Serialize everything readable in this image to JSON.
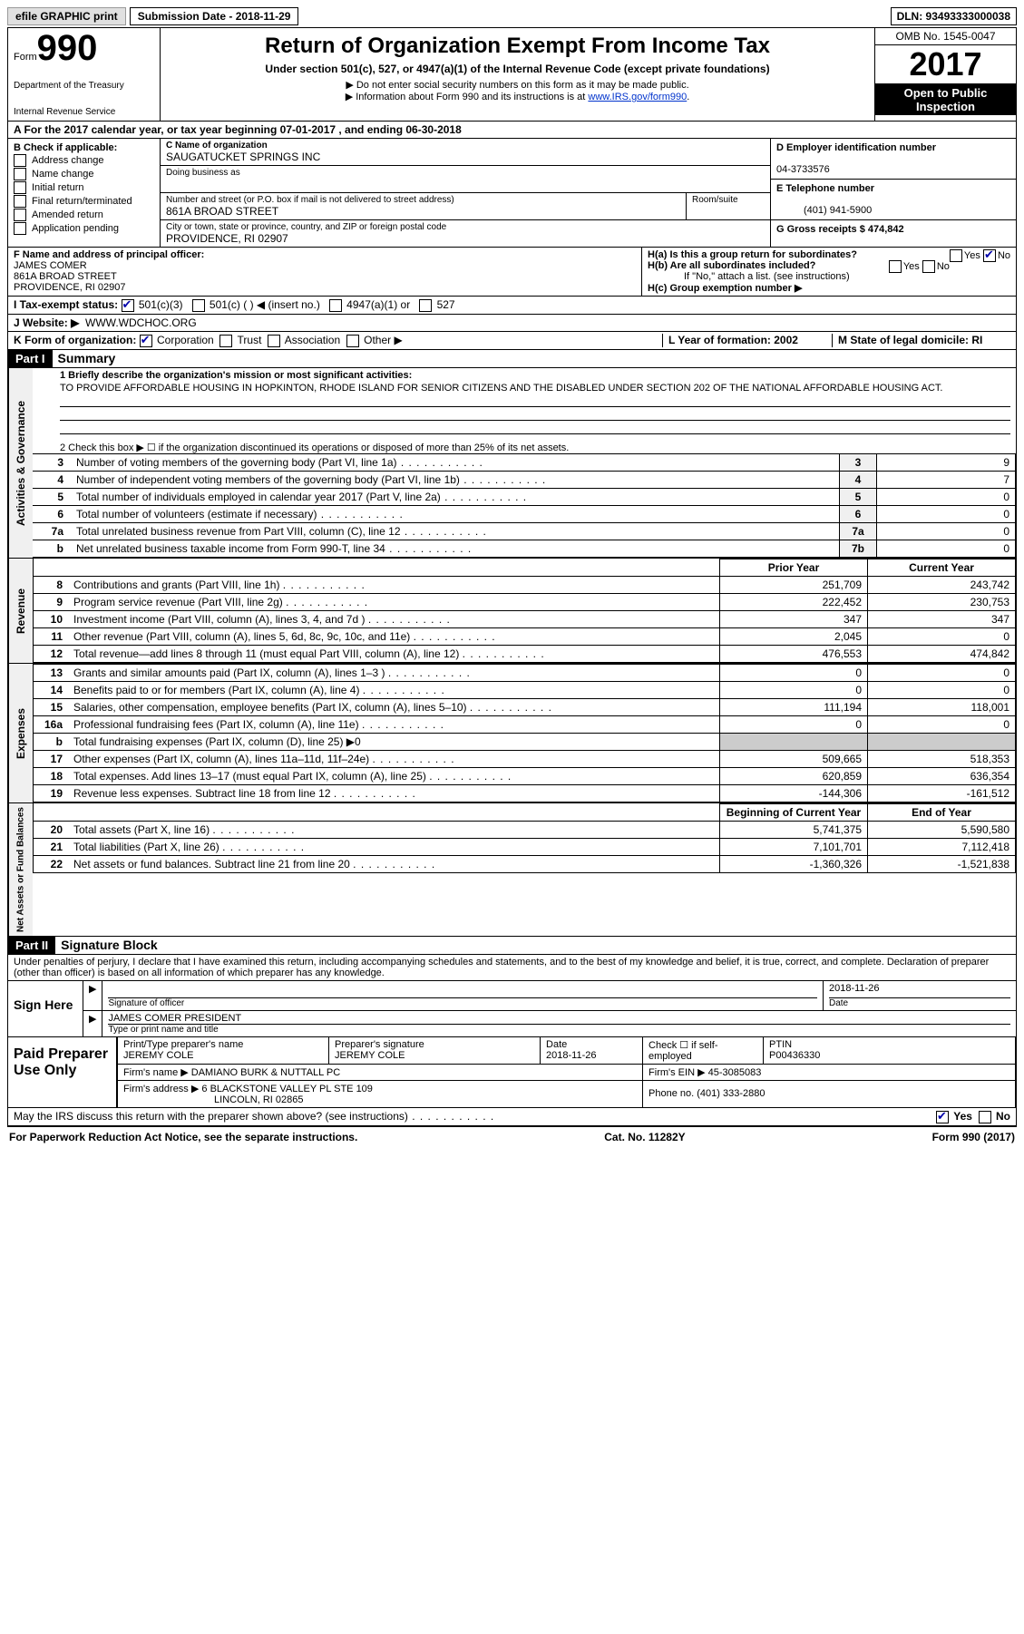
{
  "top": {
    "efile": "efile GRAPHIC print",
    "submission": "Submission Date - 2018-11-29",
    "dln": "DLN: 93493333000038"
  },
  "header": {
    "form_label": "Form",
    "form_number": "990",
    "dept1": "Department of the Treasury",
    "dept2": "Internal Revenue Service",
    "title": "Return of Organization Exempt From Income Tax",
    "subtitle": "Under section 501(c), 527, or 4947(a)(1) of the Internal Revenue Code (except private foundations)",
    "note1": "▶ Do not enter social security numbers on this form as it may be made public.",
    "note2": "▶ Information about Form 990 and its instructions is at ",
    "note2_link": "www.IRS.gov/form990",
    "omb": "OMB No. 1545-0047",
    "year": "2017",
    "open1": "Open to Public",
    "open2": "Inspection"
  },
  "rowA": "A  For the 2017 calendar year, or tax year beginning 07-01-2017   , and ending 06-30-2018",
  "sectionB": {
    "b_label": "B Check if applicable:",
    "checks": [
      "Address change",
      "Name change",
      "Initial return",
      "Final return/terminated",
      "Amended return",
      "Application pending"
    ],
    "c_label": "C Name of organization",
    "org_name": "SAUGATUCKET SPRINGS INC",
    "dba_label": "Doing business as",
    "street_label": "Number and street (or P.O. box if mail is not delivered to street address)",
    "room_label": "Room/suite",
    "street": "861A BROAD STREET",
    "city_label": "City or town, state or province, country, and ZIP or foreign postal code",
    "city": "PROVIDENCE, RI  02907",
    "d_label": "D Employer identification number",
    "ein": "04-3733576",
    "e_label": "E Telephone number",
    "phone": "(401) 941-5900",
    "g_label": "G Gross receipts $ 474,842"
  },
  "sectionF": {
    "f_label": "F Name and address of principal officer:",
    "name": "JAMES COMER",
    "addr1": "861A BROAD STREET",
    "addr2": "PROVIDENCE, RI  02907",
    "ha": "H(a)  Is this a group return for subordinates?",
    "hb": "H(b)  Are all subordinates included?",
    "hb_note": "If \"No,\" attach a list. (see instructions)",
    "hc": "H(c)  Group exemption number ▶",
    "yes": "Yes",
    "no": "No"
  },
  "rowI": {
    "label": "I  Tax-exempt status:",
    "opts": [
      "501(c)(3)",
      "501(c) (  ) ◀ (insert no.)",
      "4947(a)(1) or",
      "527"
    ]
  },
  "rowJ": {
    "label": "J  Website: ▶",
    "value": "WWW.WDCHOC.ORG"
  },
  "rowK": {
    "label": "K Form of organization:",
    "opts": [
      "Corporation",
      "Trust",
      "Association",
      "Other ▶"
    ],
    "l": "L Year of formation: 2002",
    "m": "M State of legal domicile: RI"
  },
  "part1": {
    "header": "Part I",
    "title": "Summary"
  },
  "mission_label": "1   Briefly describe the organization's mission or most significant activities:",
  "mission": "TO PROVIDE AFFORDABLE HOUSING IN HOPKINTON, RHODE ISLAND FOR SENIOR CITIZENS AND THE DISABLED UNDER SECTION 202 OF THE NATIONAL AFFORDABLE HOUSING ACT.",
  "line2": "2   Check this box ▶ ☐  if the organization discontinued its operations or disposed of more than 25% of its net assets.",
  "gov_lines": [
    {
      "n": "3",
      "desc": "Number of voting members of the governing body (Part VI, line 1a)",
      "box": "3",
      "val": "9"
    },
    {
      "n": "4",
      "desc": "Number of independent voting members of the governing body (Part VI, line 1b)",
      "box": "4",
      "val": "7"
    },
    {
      "n": "5",
      "desc": "Total number of individuals employed in calendar year 2017 (Part V, line 2a)",
      "box": "5",
      "val": "0"
    },
    {
      "n": "6",
      "desc": "Total number of volunteers (estimate if necessary)",
      "box": "6",
      "val": "0"
    },
    {
      "n": "7a",
      "desc": "Total unrelated business revenue from Part VIII, column (C), line 12",
      "box": "7a",
      "val": "0"
    },
    {
      "n": "b",
      "desc": "Net unrelated business taxable income from Form 990-T, line 34",
      "box": "7b",
      "val": "0"
    }
  ],
  "col_headers": {
    "prior": "Prior Year",
    "current": "Current Year",
    "boy": "Beginning of Current Year",
    "eoy": "End of Year"
  },
  "revenue": [
    {
      "n": "8",
      "desc": "Contributions and grants (Part VIII, line 1h)",
      "prior": "251,709",
      "cur": "243,742"
    },
    {
      "n": "9",
      "desc": "Program service revenue (Part VIII, line 2g)",
      "prior": "222,452",
      "cur": "230,753"
    },
    {
      "n": "10",
      "desc": "Investment income (Part VIII, column (A), lines 3, 4, and 7d )",
      "prior": "347",
      "cur": "347"
    },
    {
      "n": "11",
      "desc": "Other revenue (Part VIII, column (A), lines 5, 6d, 8c, 9c, 10c, and 11e)",
      "prior": "2,045",
      "cur": "0"
    },
    {
      "n": "12",
      "desc": "Total revenue—add lines 8 through 11 (must equal Part VIII, column (A), line 12)",
      "prior": "476,553",
      "cur": "474,842"
    }
  ],
  "expenses": [
    {
      "n": "13",
      "desc": "Grants and similar amounts paid (Part IX, column (A), lines 1–3 )",
      "prior": "0",
      "cur": "0"
    },
    {
      "n": "14",
      "desc": "Benefits paid to or for members (Part IX, column (A), line 4)",
      "prior": "0",
      "cur": "0"
    },
    {
      "n": "15",
      "desc": "Salaries, other compensation, employee benefits (Part IX, column (A), lines 5–10)",
      "prior": "111,194",
      "cur": "118,001"
    },
    {
      "n": "16a",
      "desc": "Professional fundraising fees (Part IX, column (A), line 11e)",
      "prior": "0",
      "cur": "0"
    },
    {
      "n": "b",
      "desc": "Total fundraising expenses (Part IX, column (D), line 25) ▶0",
      "prior": "",
      "cur": "",
      "shaded": true
    },
    {
      "n": "17",
      "desc": "Other expenses (Part IX, column (A), lines 11a–11d, 11f–24e)",
      "prior": "509,665",
      "cur": "518,353"
    },
    {
      "n": "18",
      "desc": "Total expenses. Add lines 13–17 (must equal Part IX, column (A), line 25)",
      "prior": "620,859",
      "cur": "636,354"
    },
    {
      "n": "19",
      "desc": "Revenue less expenses. Subtract line 18 from line 12",
      "prior": "-144,306",
      "cur": "-161,512"
    }
  ],
  "netassets": [
    {
      "n": "20",
      "desc": "Total assets (Part X, line 16)",
      "prior": "5,741,375",
      "cur": "5,590,580"
    },
    {
      "n": "21",
      "desc": "Total liabilities (Part X, line 26)",
      "prior": "7,101,701",
      "cur": "7,112,418"
    },
    {
      "n": "22",
      "desc": "Net assets or fund balances. Subtract line 21 from line 20",
      "prior": "-1,360,326",
      "cur": "-1,521,838"
    }
  ],
  "vert": {
    "gov": "Activities & Governance",
    "rev": "Revenue",
    "exp": "Expenses",
    "net": "Net Assets or Fund Balances"
  },
  "part2": {
    "header": "Part II",
    "title": "Signature Block"
  },
  "penalties": "Under penalties of perjury, I declare that I have examined this return, including accompanying schedules and statements, and to the best of my knowledge and belief, it is true, correct, and complete. Declaration of preparer (other than officer) is based on all information of which preparer has any knowledge.",
  "sign": {
    "here": "Sign Here",
    "sig_label": "Signature of officer",
    "date": "2018-11-26",
    "date_label": "Date",
    "name": "JAMES COMER  PRESIDENT",
    "name_label": "Type or print name and title"
  },
  "prep": {
    "label": "Paid Preparer Use Only",
    "l1": "Print/Type preparer's name",
    "v1": "JEREMY COLE",
    "l2": "Preparer's signature",
    "v2": "JEREMY COLE",
    "l3": "Date",
    "v3": "2018-11-26",
    "l4": "Check ☐ if self-employed",
    "l5": "PTIN",
    "v5": "P00436330",
    "firm_l": "Firm's name    ▶",
    "firm": "DAMIANO BURK & NUTTALL PC",
    "ein_l": "Firm's EIN ▶",
    "ein": "45-3085083",
    "addr_l": "Firm's address ▶",
    "addr": "6 BLACKSTONE VALLEY PL STE 109",
    "addr2": "LINCOLN, RI  02865",
    "phone_l": "Phone no.",
    "phone": "(401) 333-2880"
  },
  "discuss": "May the IRS discuss this return with the preparer shown above? (see instructions)",
  "footer": {
    "left": "For Paperwork Reduction Act Notice, see the separate instructions.",
    "center": "Cat. No. 11282Y",
    "right": "Form 990 (2017)"
  }
}
